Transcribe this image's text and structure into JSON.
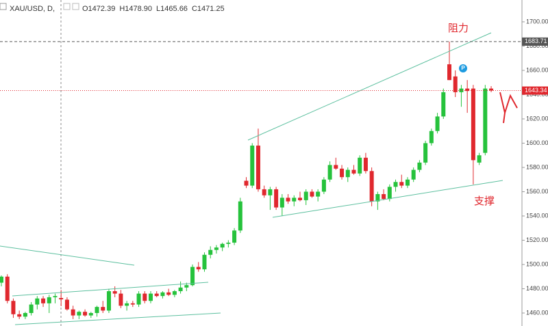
{
  "chart_data": {
    "type": "candlestick",
    "title": "XAU/USD, D,",
    "ohlc": [
      "O1472.39",
      "H1478.90",
      "L1465.66",
      "C1471.25"
    ],
    "annotations": [
      "阻力",
      "支撑"
    ],
    "marker_label": "P",
    "up_color": "#26c23c",
    "down_color": "#e0282e",
    "open": [
      1485,
      1490,
      1470,
      1459,
      1457,
      1460,
      1467,
      1472,
      1468,
      1473,
      1472.39,
      1471,
      1463,
      1458,
      1461,
      1458,
      1460,
      1465,
      1462,
      1478,
      1476,
      1466,
      1468,
      1467,
      1476,
      1470,
      1476,
      1474,
      1477,
      1475,
      1478,
      1481,
      1483,
      1498,
      1496,
      1508,
      1512,
      1514,
      1517,
      1518,
      1528,
      1569,
      1565,
      1598,
      1562,
      1557,
      1562,
      1547,
      1555,
      1552,
      1555,
      1553,
      1560,
      1556,
      1560,
      1570,
      1582,
      1579,
      1572,
      1578,
      1575,
      1588,
      1577,
      1552,
      1558,
      1554,
      1564,
      1568,
      1565,
      1570,
      1578,
      1584,
      1600,
      1610,
      1622,
      1665,
      1655,
      1642,
      1645,
      1645,
      1584,
      1592,
      1645
    ],
    "high": [
      1491,
      1492,
      1472,
      1462,
      1461,
      1469,
      1474,
      1474,
      1475,
      1476,
      1478.9,
      1473,
      1466,
      1462,
      1463,
      1461,
      1466,
      1470,
      1480,
      1482,
      1479,
      1470,
      1470,
      1478,
      1478,
      1478,
      1478,
      1478,
      1480,
      1479,
      1486,
      1485,
      1500,
      1502,
      1510,
      1515,
      1516,
      1518,
      1520,
      1530,
      1555,
      1572,
      1600,
      1612,
      1565,
      1564,
      1564,
      1558,
      1558,
      1557,
      1560,
      1562,
      1562,
      1562,
      1572,
      1585,
      1588,
      1582,
      1580,
      1582,
      1590,
      1592,
      1580,
      1560,
      1562,
      1566,
      1570,
      1574,
      1572,
      1580,
      1586,
      1602,
      1612,
      1625,
      1645,
      1683.71,
      1660,
      1648,
      1652,
      1648,
      1592,
      1648,
      1647
    ],
    "low": [
      1482,
      1468,
      1456,
      1455,
      1455,
      1458,
      1463,
      1465,
      1460,
      1468,
      1465.66,
      1462,
      1455,
      1455,
      1457,
      1456,
      1457,
      1460,
      1460,
      1473,
      1464,
      1462,
      1465,
      1465,
      1468,
      1468,
      1473,
      1472,
      1474,
      1473,
      1476,
      1478,
      1482,
      1494,
      1494,
      1505,
      1509,
      1511,
      1514,
      1516,
      1526,
      1563,
      1563,
      1560,
      1555,
      1545,
      1545,
      1540,
      1550,
      1548,
      1552,
      1549,
      1555,
      1552,
      1558,
      1568,
      1578,
      1570,
      1568,
      1574,
      1573,
      1575,
      1548,
      1545,
      1553,
      1552,
      1560,
      1563,
      1563,
      1568,
      1576,
      1582,
      1598,
      1608,
      1620,
      1652,
      1638,
      1630,
      1625,
      1566,
      1582,
      1590,
      1642
    ],
    "close": [
      1490,
      1470,
      1459,
      1457,
      1460,
      1467,
      1472,
      1468,
      1473,
      1474,
      1471.25,
      1463,
      1458,
      1461,
      1458,
      1460,
      1465,
      1462,
      1478,
      1476,
      1466,
      1468,
      1467,
      1476,
      1470,
      1476,
      1474,
      1477,
      1475,
      1478,
      1481,
      1483,
      1498,
      1496,
      1508,
      1512,
      1514,
      1517,
      1518,
      1528,
      1552,
      1565,
      1598,
      1562,
      1557,
      1562,
      1547,
      1555,
      1552,
      1555,
      1553,
      1560,
      1556,
      1560,
      1570,
      1582,
      1579,
      1572,
      1578,
      1575,
      1588,
      1577,
      1552,
      1558,
      1554,
      1564,
      1568,
      1565,
      1570,
      1578,
      1584,
      1600,
      1610,
      1622,
      1642,
      1652,
      1642,
      1645,
      1643,
      1586,
      1590,
      1645,
      1643.34
    ],
    "ylim": [
      1449.3,
      1718
    ],
    "yticks": [
      {
        "value": 1460,
        "label": "1460.00"
      },
      {
        "value": 1480,
        "label": "1480.00"
      },
      {
        "value": 1500,
        "label": "1500.00"
      },
      {
        "value": 1520,
        "label": "1520.00"
      },
      {
        "value": 1540,
        "label": "1540.00"
      },
      {
        "value": 1560,
        "label": "1560.00"
      },
      {
        "value": 1580,
        "label": "1580.00"
      },
      {
        "value": 1600,
        "label": "1600.00"
      },
      {
        "value": 1620,
        "label": "1620.00"
      },
      {
        "value": 1640,
        "label": "1640.00"
      },
      {
        "value": 1660,
        "label": "1660.00"
      },
      {
        "value": 1680,
        "label": "1680.00"
      },
      {
        "value": 1700,
        "label": "1700.00"
      }
    ],
    "price_lines": [
      {
        "value": 1683.71,
        "color": "#555555"
      },
      {
        "value": 1643.34,
        "color": "#e0282e"
      }
    ]
  }
}
